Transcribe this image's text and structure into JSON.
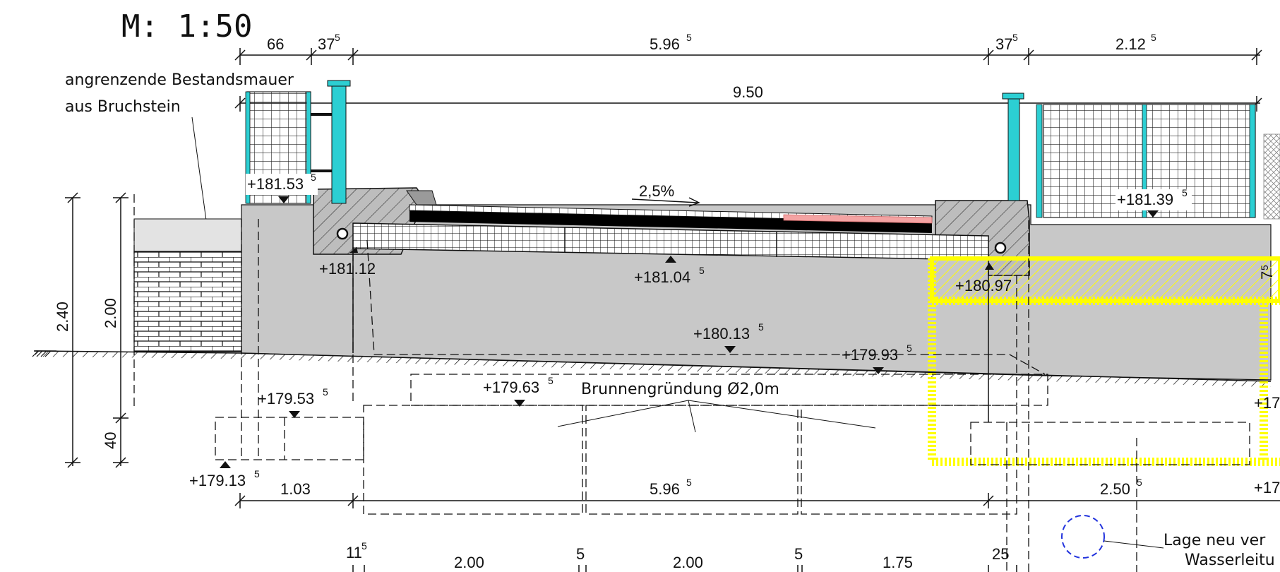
{
  "scale": "M: 1:50",
  "top_dims": {
    "d1": "66",
    "d2_base": "37",
    "d2_sup": "5",
    "d3_base": "5.96",
    "d3_sup": "5",
    "d4_base": "37",
    "d4_sup": "5",
    "d5_base": "2.12",
    "d5_sup": "5",
    "overall": "9.50"
  },
  "wall_label": {
    "line1": "angrenzende Bestandsmauer",
    "line2": "aus Bruchstein"
  },
  "slope": "2,5%",
  "elevations": {
    "e1_base": "+181.53",
    "e1_sup": "5",
    "e2": "+181.12",
    "e3_base": "+181.04",
    "e3_sup": "5",
    "e4": "+180.97",
    "e5_base": "+181.39",
    "e5_sup": "5",
    "e6_base": "+180.13",
    "e6_sup": "5",
    "e7_base": "+179.93",
    "e7_sup": "5",
    "e8_base": "+179.63",
    "e8_sup": "5",
    "e9_base": "+179.53",
    "e9_sup": "5",
    "e10_base": "+179.13",
    "e10_sup": "5",
    "e11": "+17",
    "e12": "+17"
  },
  "foundation_label": "Brunnengründung Ø2,0m",
  "vertical_dims": {
    "v1": "2.40",
    "v2": "2.00",
    "v3": "40",
    "v4": "7",
    "v4_sup": "5"
  },
  "bottom_dims": {
    "b1": "1.03",
    "b2_base": "5.96",
    "b2_sup": "5",
    "b3_base": "2.50",
    "b3_sup": "5",
    "b4_base": "11",
    "b4_sup": "5",
    "b5": "2.00",
    "b6": "5",
    "b7": "2.00",
    "b8": "5",
    "b9": "1.75",
    "b10": "25"
  },
  "note": {
    "line1": "Lage neu ver",
    "line2": "Wasserleitu"
  },
  "colors": {
    "concrete": "#c8c8c8",
    "ground_fill": "#e0e0e0",
    "post_cyan": "#2ccfd3",
    "asphalt": "#000000",
    "red_marking": "#f4a3a3",
    "highlight_yellow": "#ffff00",
    "note_circle": "#2233dd"
  }
}
